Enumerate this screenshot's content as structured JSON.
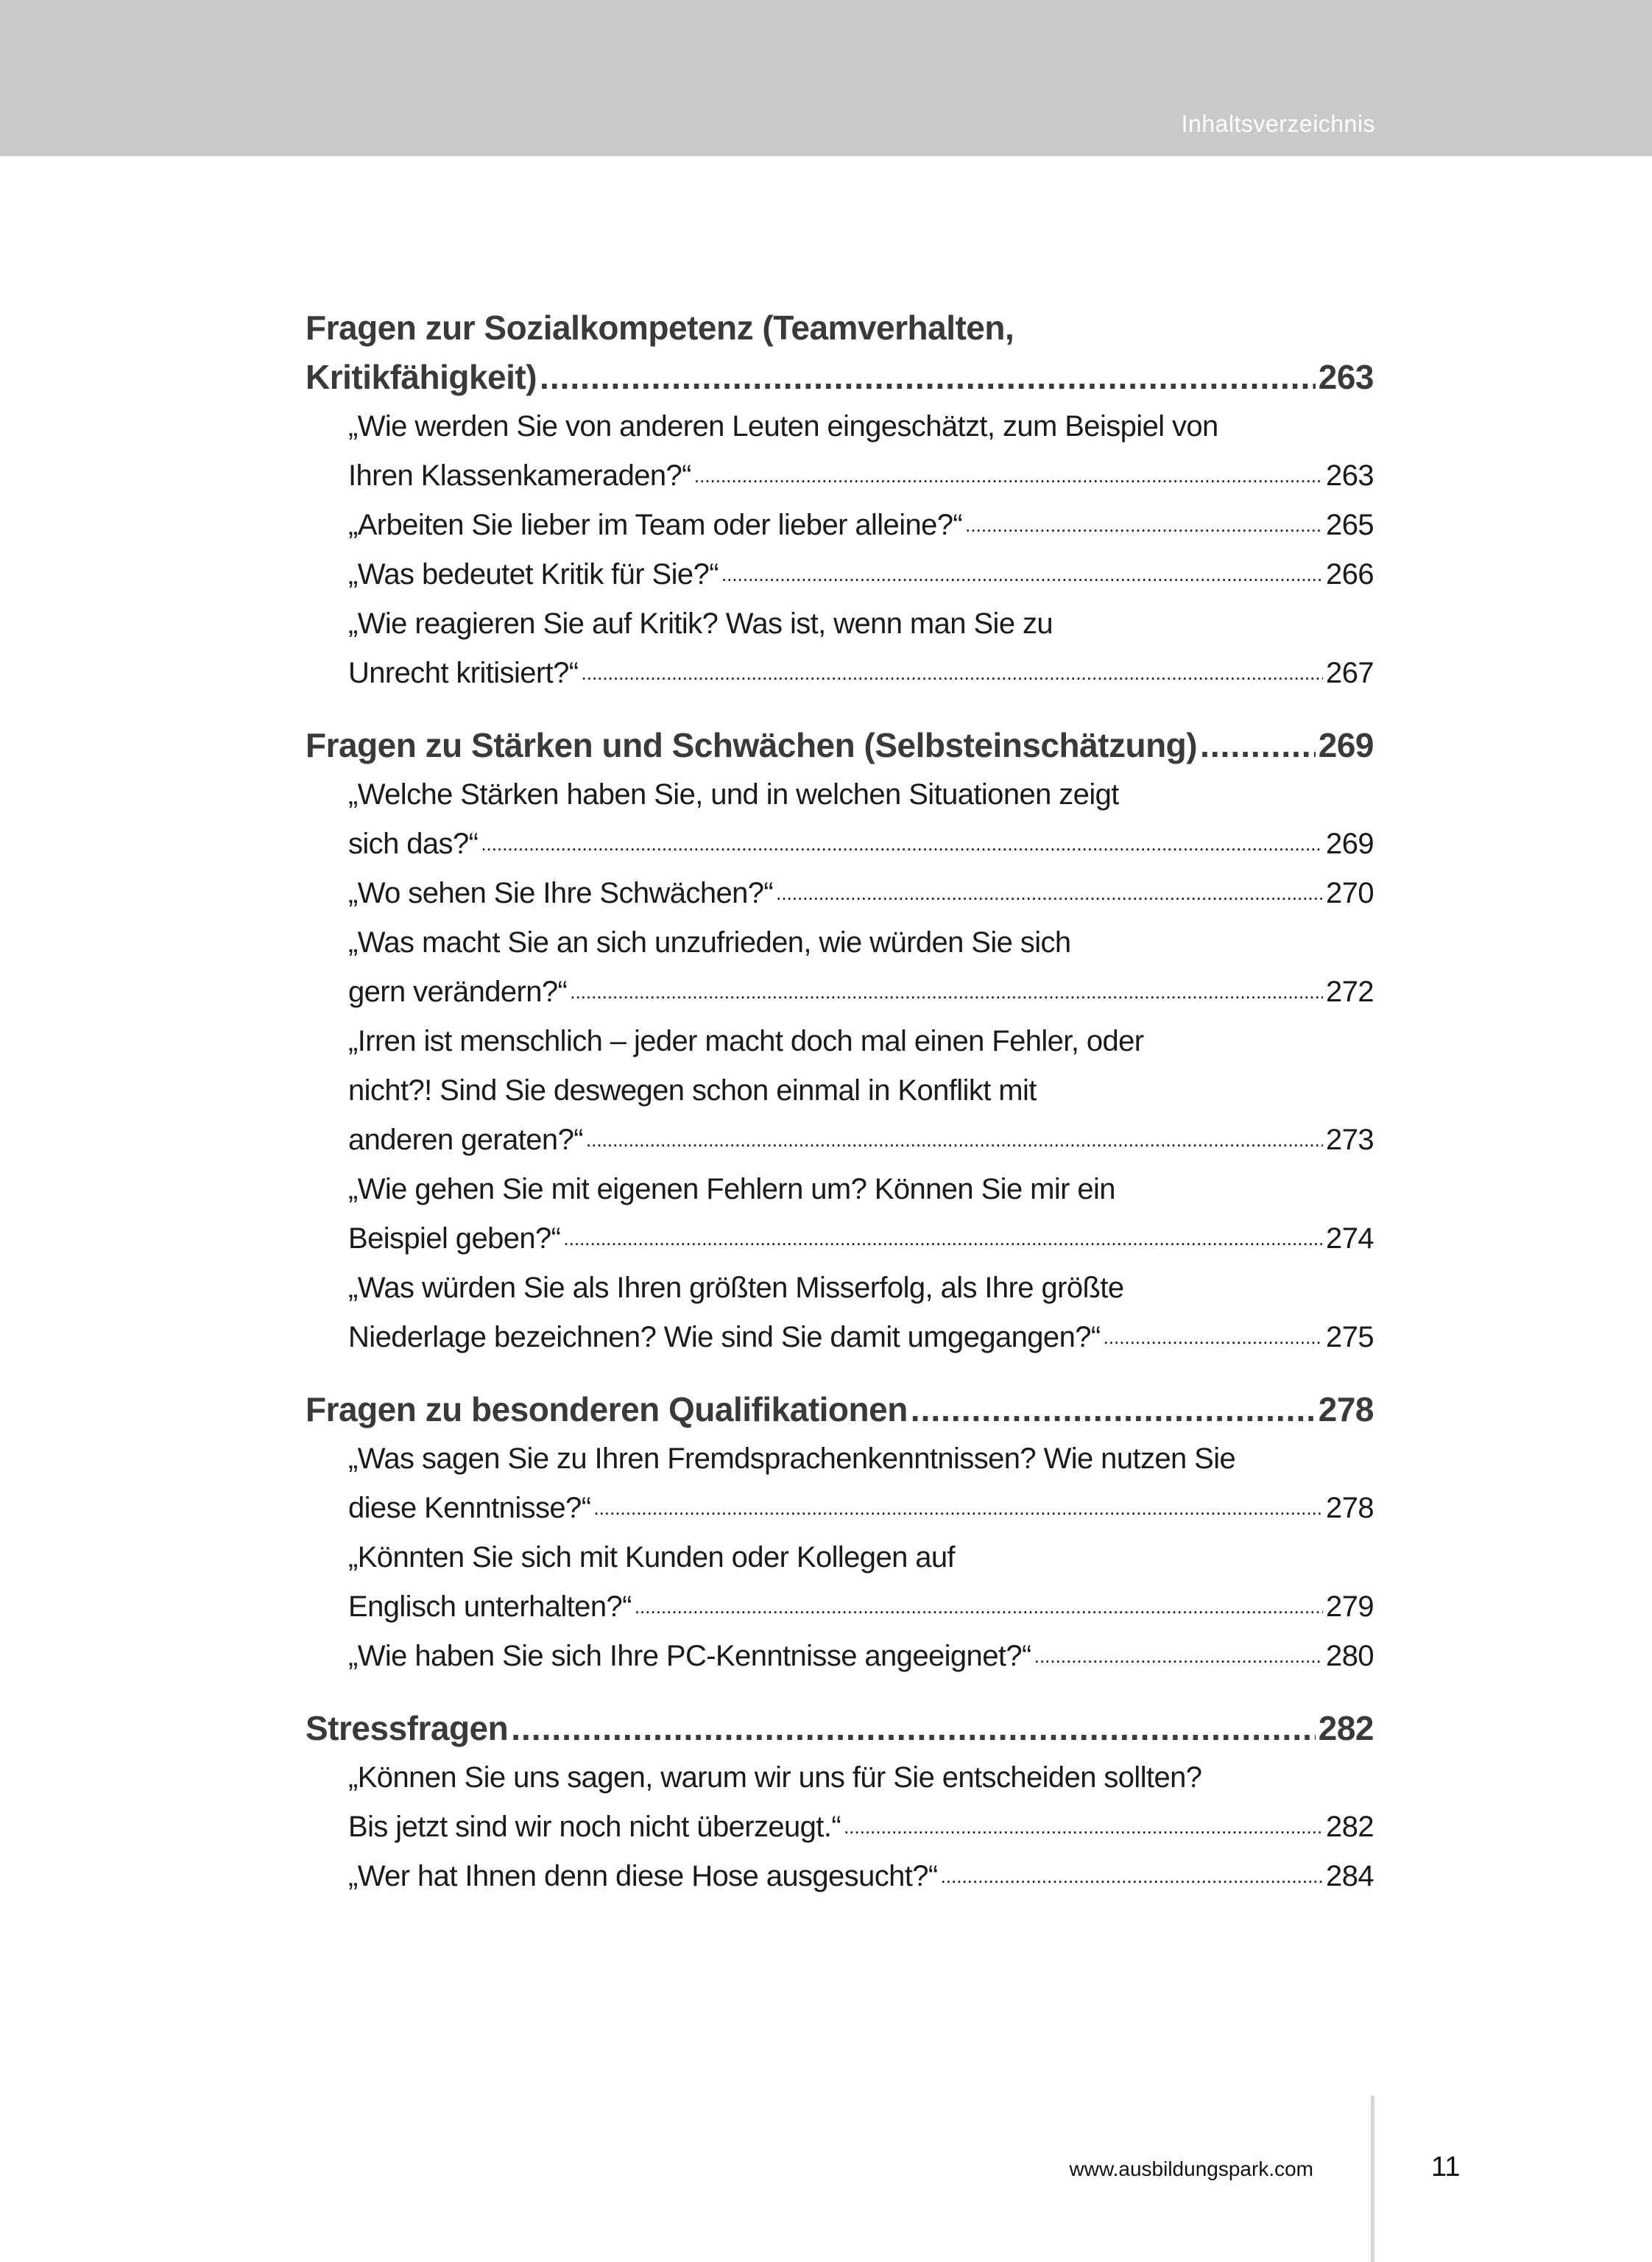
{
  "header": {
    "title": "Inhaltsverzeichnis"
  },
  "toc": {
    "sections": [
      {
        "title_lines": [
          "Fragen zur Sozialkompetenz (Teamverhalten,",
          "Kritikfähigkeit)"
        ],
        "page": "263",
        "entries": [
          {
            "lines": [
              "„Wie werden Sie von anderen Leuten eingeschätzt, zum Beispiel von",
              "Ihren Klassenkameraden?“"
            ],
            "page": "263"
          },
          {
            "lines": [
              "„Arbeiten Sie lieber im Team oder lieber alleine?“"
            ],
            "page": "265"
          },
          {
            "lines": [
              "„Was bedeutet Kritik für Sie?“"
            ],
            "page": "266"
          },
          {
            "lines": [
              "„Wie reagieren Sie auf Kritik? Was ist, wenn man Sie zu",
              "Unrecht kritisiert?“"
            ],
            "page": "267"
          }
        ]
      },
      {
        "title_lines": [
          "Fragen zu Stärken und Schwächen (Selbsteinschätzung)"
        ],
        "page": "269",
        "entries": [
          {
            "lines": [
              "„Welche Stärken haben Sie, und in welchen Situationen zeigt",
              "sich das?“"
            ],
            "page": "269"
          },
          {
            "lines": [
              "„Wo sehen Sie Ihre Schwächen?“"
            ],
            "page": "270"
          },
          {
            "lines": [
              "„Was macht Sie an sich unzufrieden, wie würden Sie sich",
              "gern verändern?“"
            ],
            "page": "272"
          },
          {
            "lines": [
              "„Irren ist menschlich – jeder macht doch mal einen Fehler, oder",
              "nicht?! Sind Sie deswegen schon einmal in Konflikt mit",
              "anderen geraten?“"
            ],
            "page": "273"
          },
          {
            "lines": [
              "„Wie gehen Sie mit eigenen Fehlern um? Können Sie mir ein",
              "Beispiel geben?“"
            ],
            "page": "274"
          },
          {
            "lines": [
              "„Was würden Sie als Ihren größten Misserfolg, als Ihre größte",
              "Niederlage bezeichnen? Wie sind Sie damit umgegangen?“"
            ],
            "page": "275"
          }
        ]
      },
      {
        "title_lines": [
          "Fragen zu besonderen Qualifikationen"
        ],
        "page": "278",
        "entries": [
          {
            "lines": [
              "„Was sagen Sie zu Ihren Fremdsprachenkenntnissen? Wie nutzen Sie",
              "diese Kenntnisse?“"
            ],
            "page": "278"
          },
          {
            "lines": [
              "„Könnten Sie sich mit Kunden oder Kollegen auf",
              "Englisch unterhalten?“"
            ],
            "page": "279"
          },
          {
            "lines": [
              "„Wie haben Sie sich Ihre PC-Kenntnisse angeeignet?“"
            ],
            "page": "280"
          }
        ]
      },
      {
        "title_lines": [
          "Stressfragen"
        ],
        "page": "282",
        "entries": [
          {
            "lines": [
              "„Können Sie uns sagen, warum wir uns für Sie entscheiden sollten?",
              "Bis jetzt sind wir noch nicht überzeugt.“"
            ],
            "page": "282"
          },
          {
            "lines": [
              "„Wer hat Ihnen denn diese Hose ausgesucht?“"
            ],
            "page": "284"
          }
        ]
      }
    ]
  },
  "footer": {
    "url": "www.ausbildungspark.com",
    "page_number": "11"
  }
}
